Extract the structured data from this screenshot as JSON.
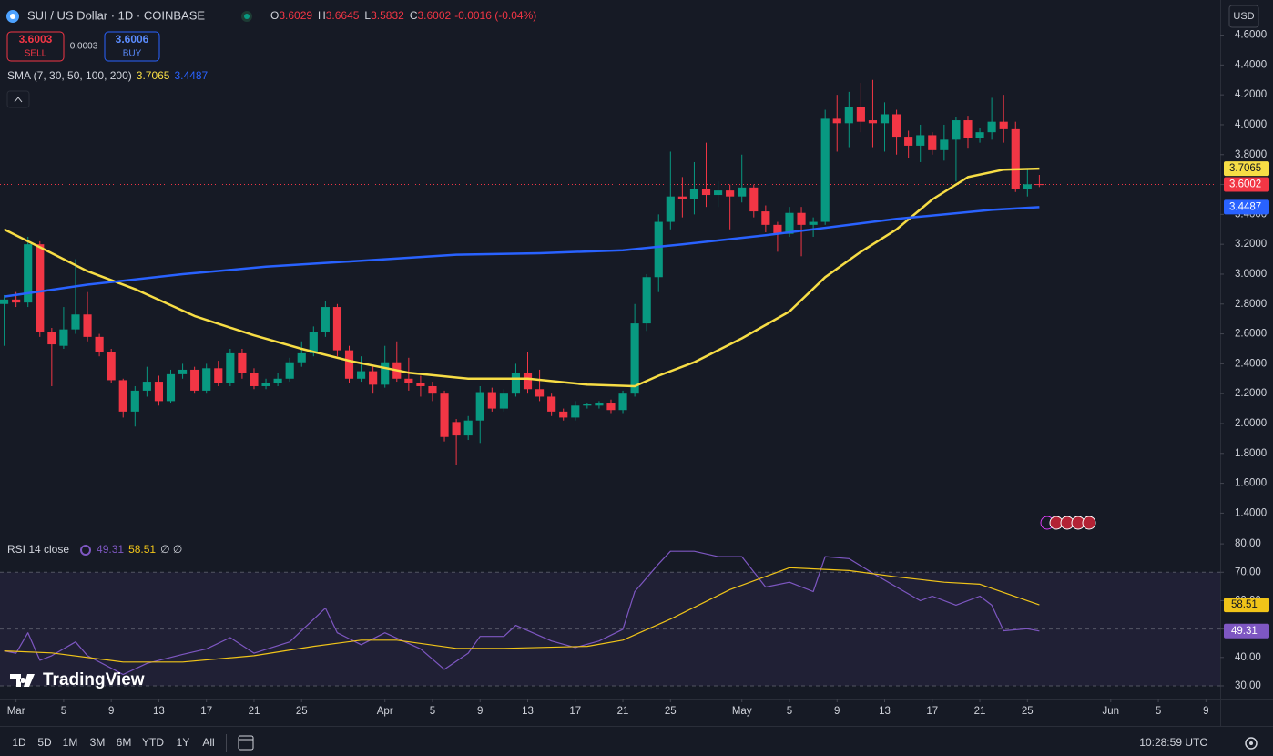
{
  "header": {
    "symbol": "SUI / US Dollar · 1D · COINBASE",
    "open_label": "O",
    "high_label": "H",
    "low_label": "L",
    "close_label": "C",
    "change": "-0.0016 (-0.04%)"
  },
  "trade": {
    "sell_price": 3.6003,
    "sell_label": "SELL",
    "spread": 0.0003,
    "buy_price": 3.6006,
    "buy_label": "BUY"
  },
  "currency": "USD",
  "logo": "TradingView",
  "chart_data": [
    {
      "type": "candlestick",
      "xlim": [
        -0.35,
        102.2
      ],
      "xticks": [
        {
          "value": 1,
          "label": "Mar"
        },
        {
          "value": 5,
          "label": "5"
        },
        {
          "value": 9,
          "label": "9"
        },
        {
          "value": 13,
          "label": "13"
        },
        {
          "value": 17,
          "label": "17"
        },
        {
          "value": 21,
          "label": "21"
        },
        {
          "value": 25,
          "label": "25"
        },
        {
          "value": 32,
          "label": "Apr"
        },
        {
          "value": 36,
          "label": "5"
        },
        {
          "value": 40,
          "label": "9"
        },
        {
          "value": 44,
          "label": "13"
        },
        {
          "value": 48,
          "label": "17"
        },
        {
          "value": 52,
          "label": "21"
        },
        {
          "value": 56,
          "label": "25"
        },
        {
          "value": 62,
          "label": "May"
        },
        {
          "value": 66,
          "label": "5"
        },
        {
          "value": 70,
          "label": "9"
        },
        {
          "value": 74,
          "label": "13"
        },
        {
          "value": 78,
          "label": "17"
        },
        {
          "value": 82,
          "label": "21"
        },
        {
          "value": 86,
          "label": "25"
        },
        {
          "value": 93,
          "label": "Jun"
        },
        {
          "value": 97,
          "label": "5"
        },
        {
          "value": 101,
          "label": "9"
        }
      ],
      "ylim": [
        1.25,
        4.835
      ],
      "yticks": [
        {
          "value": 1.4,
          "label": "1.4000"
        },
        {
          "value": 1.6,
          "label": "1.6000"
        },
        {
          "value": 1.8,
          "label": "1.8000"
        },
        {
          "value": 2.0,
          "label": "2.0000"
        },
        {
          "value": 2.2,
          "label": "2.2000"
        },
        {
          "value": 2.4,
          "label": "2.4000"
        },
        {
          "value": 2.6,
          "label": "2.6000"
        },
        {
          "value": 2.8,
          "label": "2.8000"
        },
        {
          "value": 3.0,
          "label": "3.0000"
        },
        {
          "value": 3.2,
          "label": "3.2000"
        },
        {
          "value": 3.4,
          "label": "3.4000"
        },
        {
          "value": 3.6,
          "label": "3.6000"
        },
        {
          "value": 3.8,
          "label": "3.8000"
        },
        {
          "value": 4.0,
          "label": "4.0000"
        },
        {
          "value": 4.2,
          "label": "4.2000"
        },
        {
          "value": 4.4,
          "label": "4.4000"
        },
        {
          "value": 4.6,
          "label": "4.6000"
        }
      ],
      "up_color": "#089981",
      "down_color": "#f23645",
      "open": [
        2.8,
        2.83,
        2.81,
        3.2,
        2.61,
        2.52,
        2.63,
        2.73,
        2.58,
        2.48,
        2.29,
        2.08,
        2.22,
        2.28,
        2.15,
        2.33,
        2.36,
        2.22,
        2.37,
        2.27,
        2.47,
        2.34,
        2.25,
        2.27,
        2.3,
        2.41,
        2.47,
        2.61,
        2.78,
        2.49,
        2.3,
        2.35,
        2.26,
        2.41,
        2.3,
        2.27,
        2.25,
        2.2,
        2.01,
        1.92,
        2.02,
        2.21,
        2.1,
        2.2,
        2.34,
        2.23,
        2.18,
        2.08,
        2.04,
        2.12,
        2.12,
        2.14,
        2.09,
        2.2,
        2.67,
        2.98,
        3.35,
        3.52,
        3.5,
        3.57,
        3.53,
        3.56,
        3.52,
        3.58,
        3.42,
        3.33,
        3.27,
        3.41,
        3.33,
        3.35,
        4.04,
        4.01,
        4.12,
        4.03,
        4.01,
        4.07,
        3.92,
        3.86,
        3.93,
        3.83,
        3.9,
        4.03,
        3.91,
        3.95,
        4.02,
        3.97,
        3.57,
        3.6029
      ],
      "high": [
        2.86,
        2.88,
        3.25,
        3.22,
        2.64,
        2.78,
        3.1,
        2.88,
        2.6,
        2.5,
        2.3,
        2.25,
        2.38,
        2.32,
        2.36,
        2.4,
        2.38,
        2.4,
        2.42,
        2.5,
        2.5,
        2.37,
        2.3,
        2.34,
        2.44,
        2.55,
        2.65,
        2.82,
        2.8,
        2.52,
        2.45,
        2.38,
        2.52,
        2.55,
        2.44,
        2.32,
        2.28,
        2.22,
        2.03,
        2.05,
        2.25,
        2.24,
        2.23,
        2.4,
        2.48,
        2.36,
        2.2,
        2.1,
        2.15,
        2.14,
        2.15,
        2.16,
        2.22,
        2.8,
        3.0,
        3.4,
        3.82,
        3.65,
        3.75,
        3.88,
        3.62,
        3.6,
        3.8,
        3.6,
        3.46,
        3.35,
        3.45,
        3.45,
        3.38,
        4.1,
        4.2,
        4.22,
        4.28,
        4.3,
        4.15,
        4.1,
        3.96,
        4.0,
        3.95,
        4.0,
        4.05,
        4.06,
        3.98,
        4.18,
        4.2,
        4.02,
        3.7,
        3.6645
      ],
      "low": [
        2.52,
        2.78,
        2.78,
        2.58,
        2.25,
        2.5,
        2.6,
        2.55,
        2.45,
        2.27,
        2.04,
        1.98,
        2.18,
        2.12,
        2.14,
        2.3,
        2.2,
        2.2,
        2.25,
        2.25,
        2.3,
        2.23,
        2.23,
        2.25,
        2.28,
        2.38,
        2.45,
        2.58,
        2.45,
        2.27,
        2.28,
        2.2,
        2.24,
        2.28,
        2.22,
        2.18,
        2.15,
        1.88,
        1.72,
        1.89,
        1.87,
        2.08,
        2.08,
        2.18,
        2.2,
        2.15,
        2.05,
        2.02,
        2.02,
        2.1,
        2.1,
        2.07,
        2.07,
        2.18,
        2.62,
        2.88,
        3.3,
        3.38,
        3.4,
        3.45,
        3.45,
        3.3,
        3.48,
        3.38,
        3.28,
        3.15,
        3.25,
        3.12,
        3.25,
        3.33,
        3.82,
        3.85,
        3.95,
        3.85,
        3.82,
        3.8,
        3.78,
        3.75,
        3.8,
        3.76,
        3.62,
        3.84,
        3.88,
        3.9,
        3.88,
        3.55,
        3.52,
        3.5832
      ],
      "close": [
        2.83,
        2.81,
        3.2,
        2.61,
        2.53,
        2.63,
        2.73,
        2.58,
        2.48,
        2.29,
        2.08,
        2.22,
        2.28,
        2.15,
        2.33,
        2.36,
        2.22,
        2.37,
        2.27,
        2.47,
        2.34,
        2.25,
        2.27,
        2.3,
        2.41,
        2.47,
        2.61,
        2.78,
        2.49,
        2.3,
        2.35,
        2.26,
        2.41,
        2.3,
        2.27,
        2.25,
        2.2,
        1.91,
        1.92,
        2.02,
        2.21,
        2.1,
        2.2,
        2.34,
        2.23,
        2.18,
        2.08,
        2.04,
        2.12,
        2.13,
        2.14,
        2.09,
        2.2,
        2.67,
        2.98,
        3.35,
        3.52,
        3.5,
        3.57,
        3.53,
        3.56,
        3.52,
        3.58,
        3.42,
        3.33,
        3.27,
        3.41,
        3.33,
        3.35,
        4.04,
        4.01,
        4.12,
        4.02,
        4.01,
        4.07,
        3.92,
        3.86,
        3.93,
        3.83,
        3.9,
        4.03,
        3.91,
        3.95,
        4.02,
        3.97,
        3.57,
        3.6018,
        3.6002
      ],
      "indicator_label": "SMA (7, 30, 50, 100, 200)",
      "lines": [
        {
          "color": "#f7dd45",
          "x": [
            0,
            3,
            7,
            11,
            16,
            21,
            25,
            29,
            34,
            39,
            44,
            49,
            53,
            55,
            58,
            62,
            66,
            69,
            72,
            75,
            78,
            81,
            84,
            87
          ],
          "values": [
            3.3,
            3.18,
            3.02,
            2.9,
            2.72,
            2.59,
            2.5,
            2.42,
            2.34,
            2.3,
            2.3,
            2.26,
            2.25,
            2.32,
            2.41,
            2.57,
            2.75,
            2.98,
            3.15,
            3.3,
            3.5,
            3.65,
            3.7,
            3.7065
          ]
        },
        {
          "color": "#2962ff",
          "x": [
            0,
            7,
            15,
            22,
            32,
            38,
            45,
            52,
            57,
            64,
            69,
            75,
            83,
            87
          ],
          "values": [
            2.85,
            2.93,
            3.0,
            3.05,
            3.1,
            3.13,
            3.14,
            3.16,
            3.2,
            3.26,
            3.31,
            3.37,
            3.43,
            3.4487
          ]
        }
      ]
    },
    {
      "type": "line",
      "title": "RSI 14 close",
      "legend_extra": "∅ ∅",
      "ylim": [
        25.5,
        82.6
      ],
      "yticks": [
        {
          "value": 30,
          "label": "30.00"
        },
        {
          "value": 40,
          "label": "40.00"
        },
        {
          "value": 50,
          "label": "50.00"
        },
        {
          "value": 60,
          "label": "60.00"
        },
        {
          "value": 70,
          "label": "70.00"
        },
        {
          "value": 80,
          "label": "80.00"
        }
      ],
      "levels": [
        70,
        50,
        30
      ],
      "band": true,
      "series": [
        {
          "color": "#7e57c2",
          "x": [
            0,
            1,
            2,
            3,
            4,
            6,
            7,
            10,
            12,
            15,
            17,
            19,
            21,
            24,
            27,
            28,
            30,
            32,
            35,
            37,
            39,
            40,
            42,
            43,
            46,
            48,
            50,
            52,
            53,
            55,
            56,
            58,
            60,
            62,
            64,
            66,
            68,
            69,
            71,
            73,
            75,
            77,
            78,
            80,
            82,
            83,
            84,
            86,
            87
          ],
          "values": [
            42.3,
            41.5,
            48.7,
            39,
            40.6,
            45.5,
            40.6,
            34,
            37.9,
            41.1,
            43,
            47,
            41.5,
            45.5,
            57.4,
            48.7,
            44.5,
            48.7,
            43,
            35.8,
            41.5,
            47.4,
            47.4,
            51.3,
            45.8,
            43.5,
            45.8,
            49.9,
            63.2,
            72.9,
            77.4,
            77.4,
            75.5,
            75.5,
            64.8,
            66.5,
            63.2,
            75.5,
            74.8,
            69.7,
            64.8,
            60,
            61.6,
            58.4,
            61.6,
            58.4,
            49.4,
            50.1,
            49.31
          ]
        },
        {
          "color": "#f0c419",
          "x": [
            0,
            4,
            10,
            15,
            21,
            26,
            30,
            33,
            38,
            42,
            49,
            52,
            56,
            61,
            66,
            71,
            75,
            79,
            82,
            87
          ],
          "values": [
            42.3,
            41.6,
            38.4,
            38.4,
            40.6,
            43.9,
            46.1,
            46.1,
            43.2,
            43.2,
            43.9,
            46.1,
            53.5,
            63.9,
            71.6,
            70.6,
            68.4,
            66.5,
            65.8,
            58.51
          ]
        }
      ]
    }
  ],
  "timeframes": [
    "1D",
    "5D",
    "1M",
    "3M",
    "6M",
    "YTD",
    "1Y",
    "All"
  ],
  "clock": "10:28:59 UTC"
}
